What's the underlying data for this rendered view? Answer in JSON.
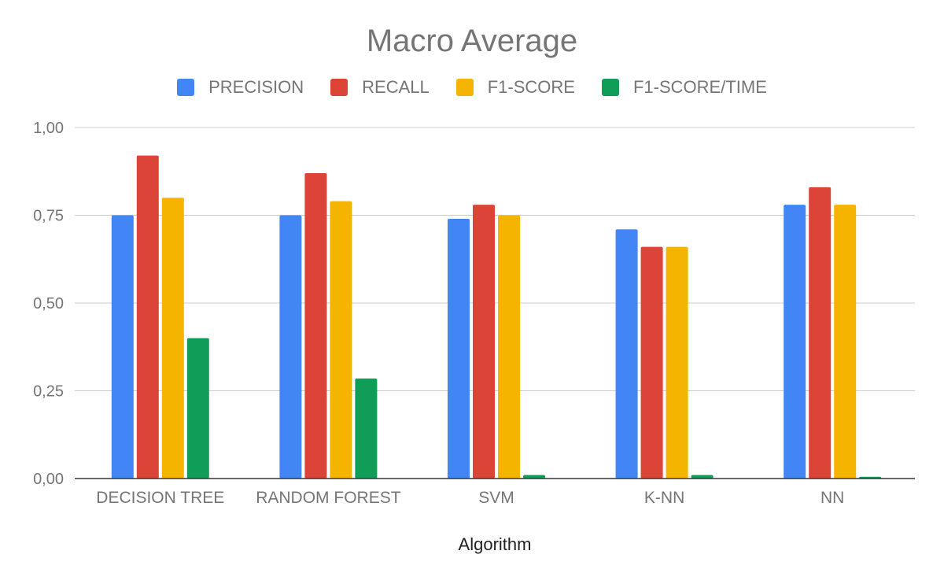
{
  "chart_data": {
    "type": "bar",
    "title": "Macro Average",
    "xlabel": "Algorithm",
    "ylabel": "",
    "ylim": [
      0,
      1
    ],
    "yticks": [
      "0,00",
      "0,25",
      "0,50",
      "0,75",
      "1,00"
    ],
    "ytick_values": [
      0,
      0.25,
      0.5,
      0.75,
      1
    ],
    "grid": true,
    "legend_position": "top",
    "categories": [
      "DECISION TREE",
      "RANDOM FOREST",
      "SVM",
      "K-NN",
      "NN"
    ],
    "series": [
      {
        "name": "PRECISION",
        "color": "#4285f4",
        "values": [
          0.75,
          0.75,
          0.74,
          0.71,
          0.78
        ]
      },
      {
        "name": "RECALL",
        "color": "#db4437",
        "values": [
          0.92,
          0.87,
          0.78,
          0.66,
          0.83
        ]
      },
      {
        "name": "F1-SCORE",
        "color": "#f4b400",
        "values": [
          0.8,
          0.79,
          0.75,
          0.66,
          0.78
        ]
      },
      {
        "name": "F1-SCORE/TIME",
        "color": "#0f9d58",
        "values": [
          0.4,
          0.285,
          0.01,
          0.01,
          0.005
        ]
      }
    ]
  }
}
